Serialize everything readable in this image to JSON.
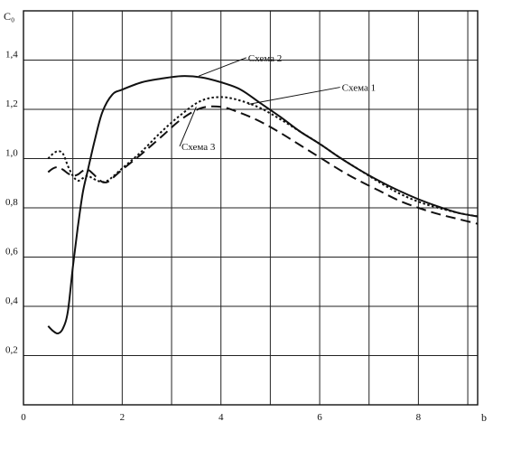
{
  "chart_data": {
    "type": "line",
    "xlabel": "b",
    "ylabel": "C₀",
    "xlim": [
      0,
      9.2
    ],
    "ylim": [
      0,
      1.6
    ],
    "grid": true,
    "x_ticks": [
      {
        "value": 0,
        "label": "0"
      },
      {
        "value": 2,
        "label": "2"
      },
      {
        "value": 4,
        "label": "4"
      },
      {
        "value": 6,
        "label": "6"
      },
      {
        "value": 8,
        "label": "8"
      }
    ],
    "y_ticks": [
      {
        "value": 0.2,
        "label": "0,2"
      },
      {
        "value": 0.4,
        "label": "0,4"
      },
      {
        "value": 0.6,
        "label": "0,6"
      },
      {
        "value": 0.8,
        "label": "0,8"
      },
      {
        "value": 1.0,
        "label": "1,0"
      },
      {
        "value": 1.2,
        "label": "1,2"
      },
      {
        "value": 1.4,
        "label": "1,4"
      }
    ],
    "series": [
      {
        "name": "Схема 2",
        "style": "solid",
        "color": "#111111",
        "points": [
          [
            0.5,
            0.32
          ],
          [
            0.6,
            0.3
          ],
          [
            0.7,
            0.29
          ],
          [
            0.8,
            0.31
          ],
          [
            0.9,
            0.38
          ],
          [
            1.0,
            0.56
          ],
          [
            1.1,
            0.72
          ],
          [
            1.2,
            0.86
          ],
          [
            1.3,
            0.95
          ],
          [
            1.45,
            1.08
          ],
          [
            1.6,
            1.19
          ],
          [
            1.8,
            1.26
          ],
          [
            2.0,
            1.28
          ],
          [
            2.4,
            1.31
          ],
          [
            2.8,
            1.325
          ],
          [
            3.2,
            1.335
          ],
          [
            3.6,
            1.33
          ],
          [
            4.0,
            1.31
          ],
          [
            4.4,
            1.28
          ],
          [
            4.8,
            1.225
          ],
          [
            5.2,
            1.17
          ],
          [
            5.6,
            1.11
          ],
          [
            6.0,
            1.06
          ],
          [
            6.4,
            1.005
          ],
          [
            6.8,
            0.955
          ],
          [
            7.2,
            0.91
          ],
          [
            7.6,
            0.87
          ],
          [
            8.0,
            0.835
          ],
          [
            8.4,
            0.805
          ],
          [
            8.8,
            0.78
          ],
          [
            9.2,
            0.765
          ]
        ]
      },
      {
        "name": "Схема 1",
        "style": "dotted",
        "color": "#111111",
        "points": [
          [
            0.5,
            1.0
          ],
          [
            0.6,
            1.02
          ],
          [
            0.7,
            1.03
          ],
          [
            0.8,
            1.02
          ],
          [
            0.9,
            0.97
          ],
          [
            1.0,
            0.93
          ],
          [
            1.1,
            0.91
          ],
          [
            1.2,
            0.92
          ],
          [
            1.3,
            0.93
          ],
          [
            1.4,
            0.92
          ],
          [
            1.5,
            0.91
          ],
          [
            1.6,
            0.905
          ],
          [
            1.7,
            0.91
          ],
          [
            1.8,
            0.925
          ],
          [
            2.0,
            0.96
          ],
          [
            2.4,
            1.03
          ],
          [
            2.8,
            1.11
          ],
          [
            3.2,
            1.18
          ],
          [
            3.6,
            1.235
          ],
          [
            4.0,
            1.25
          ],
          [
            4.4,
            1.235
          ],
          [
            4.8,
            1.205
          ],
          [
            5.2,
            1.16
          ],
          [
            5.6,
            1.11
          ],
          [
            6.0,
            1.06
          ],
          [
            6.4,
            1.005
          ],
          [
            6.8,
            0.955
          ],
          [
            7.2,
            0.905
          ],
          [
            7.6,
            0.86
          ],
          [
            8.0,
            0.825
          ],
          [
            8.4,
            0.8
          ],
          [
            8.8,
            0.78
          ],
          [
            9.2,
            0.765
          ]
        ]
      },
      {
        "name": "Схема 3",
        "style": "dashed",
        "color": "#111111",
        "points": [
          [
            0.5,
            0.945
          ],
          [
            0.6,
            0.96
          ],
          [
            0.7,
            0.965
          ],
          [
            0.8,
            0.955
          ],
          [
            0.9,
            0.94
          ],
          [
            1.0,
            0.93
          ],
          [
            1.1,
            0.935
          ],
          [
            1.2,
            0.95
          ],
          [
            1.3,
            0.955
          ],
          [
            1.4,
            0.94
          ],
          [
            1.5,
            0.92
          ],
          [
            1.6,
            0.905
          ],
          [
            1.7,
            0.905
          ],
          [
            1.8,
            0.92
          ],
          [
            2.0,
            0.955
          ],
          [
            2.4,
            1.02
          ],
          [
            2.8,
            1.09
          ],
          [
            3.2,
            1.16
          ],
          [
            3.6,
            1.205
          ],
          [
            4.0,
            1.21
          ],
          [
            4.4,
            1.185
          ],
          [
            4.8,
            1.15
          ],
          [
            5.2,
            1.105
          ],
          [
            5.6,
            1.055
          ],
          [
            6.0,
            1.005
          ],
          [
            6.4,
            0.955
          ],
          [
            6.8,
            0.91
          ],
          [
            7.2,
            0.87
          ],
          [
            7.6,
            0.83
          ],
          [
            8.0,
            0.8
          ],
          [
            8.4,
            0.775
          ],
          [
            8.8,
            0.755
          ],
          [
            9.2,
            0.735
          ]
        ]
      }
    ],
    "annotations": [
      {
        "text": "Схема 2",
        "series": "Схема 2",
        "at": [
          3.55,
          1.335
        ],
        "label_pos": [
          4.55,
          1.395
        ]
      },
      {
        "text": "Схема 1",
        "series": "Схема 1",
        "at": [
          4.55,
          1.22
        ],
        "label_pos": [
          6.45,
          1.275
        ]
      },
      {
        "text": "Схема 3",
        "series": "Схема 3",
        "at": [
          3.5,
          1.21
        ],
        "label_pos": [
          3.2,
          1.035
        ]
      }
    ]
  }
}
